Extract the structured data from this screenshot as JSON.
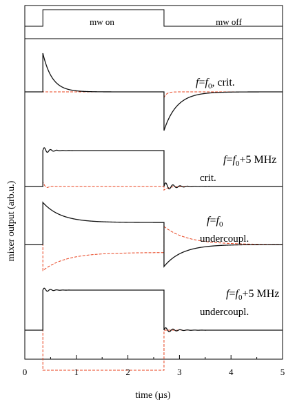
{
  "chart_data": {
    "type": "line",
    "xlabel": "time (µs)",
    "ylabel": "mixer output (arb.u.)",
    "xlim": [
      0,
      5
    ],
    "x_ticks": [
      "0",
      "1",
      "2",
      "3",
      "4",
      "5"
    ],
    "mw_pulse": {
      "on_label": "mw on",
      "off_label": "mw off",
      "t_on": 0.35,
      "t_off": 2.7
    },
    "series_style": {
      "in_phase_color": "#111111",
      "quadrature_color": "#e8401c",
      "quadrature_dash": "dashed"
    },
    "panels": [
      {
        "label_line1_italic": "f",
        "label_line1_mid": "=",
        "label_line1_italic2": "f",
        "label_line1_sub": "0",
        "label_line1_rest": ", crit.",
        "label_line2": "",
        "in_phase": {
          "on_amp": 1.0,
          "on_tau": 0.18,
          "on_level": 0.0,
          "off_amp": -1.0,
          "off_tau": 0.25,
          "off_level": 0.0,
          "ring": 0
        },
        "quadrature": {
          "on_amp": 0.0,
          "off_amp": -0.15,
          "off_tau": 0.05
        }
      },
      {
        "label_line1_italic": "f",
        "label_line1_mid": "=",
        "label_line1_italic2": "f",
        "label_line1_sub": "0",
        "label_line1_rest": "+5 MHz",
        "label_line2": "crit.",
        "in_phase": {
          "on_amp": 0.0,
          "on_tau": 0.1,
          "on_level": 1.0,
          "off_amp": 0.0,
          "off_tau": 0.1,
          "off_level": 0.0,
          "ring": 0.1
        },
        "quadrature": {
          "on_amp": 0.12,
          "off_amp": -0.1,
          "off_tau": 0.08
        }
      },
      {
        "label_line1_italic": "f",
        "label_line1_mid": "=",
        "label_line1_italic2": "f",
        "label_line1_sub": "0",
        "label_line1_rest": "",
        "label_line2": "undercoupl.",
        "in_phase": {
          "on_amp": 0.5,
          "on_tau": 0.35,
          "on_level": 0.55,
          "off_amp": -0.55,
          "off_tau": 0.35,
          "off_level": 0.0,
          "ring": 0
        },
        "quadrature": {
          "on_amp": -0.45,
          "off_amp": 0.45,
          "off_tau": 0.45,
          "on_tau": 0.45,
          "on_level": -0.2
        }
      },
      {
        "label_line1_italic": "f",
        "label_line1_mid": "=",
        "label_line1_italic2": "f",
        "label_line1_sub": "0",
        "label_line1_rest": "+5 MHz",
        "label_line2": "undercoupl.",
        "in_phase": {
          "on_amp": 0.0,
          "on_tau": 0.1,
          "on_level": 1.0,
          "off_amp": 0.0,
          "off_tau": 0.1,
          "off_level": 0.0,
          "ring": 0.06
        },
        "quadrature": {
          "on_amp": 0.0,
          "on_level": -1.0,
          "off_amp": 0.0,
          "off_tau": 0.05
        }
      }
    ]
  }
}
